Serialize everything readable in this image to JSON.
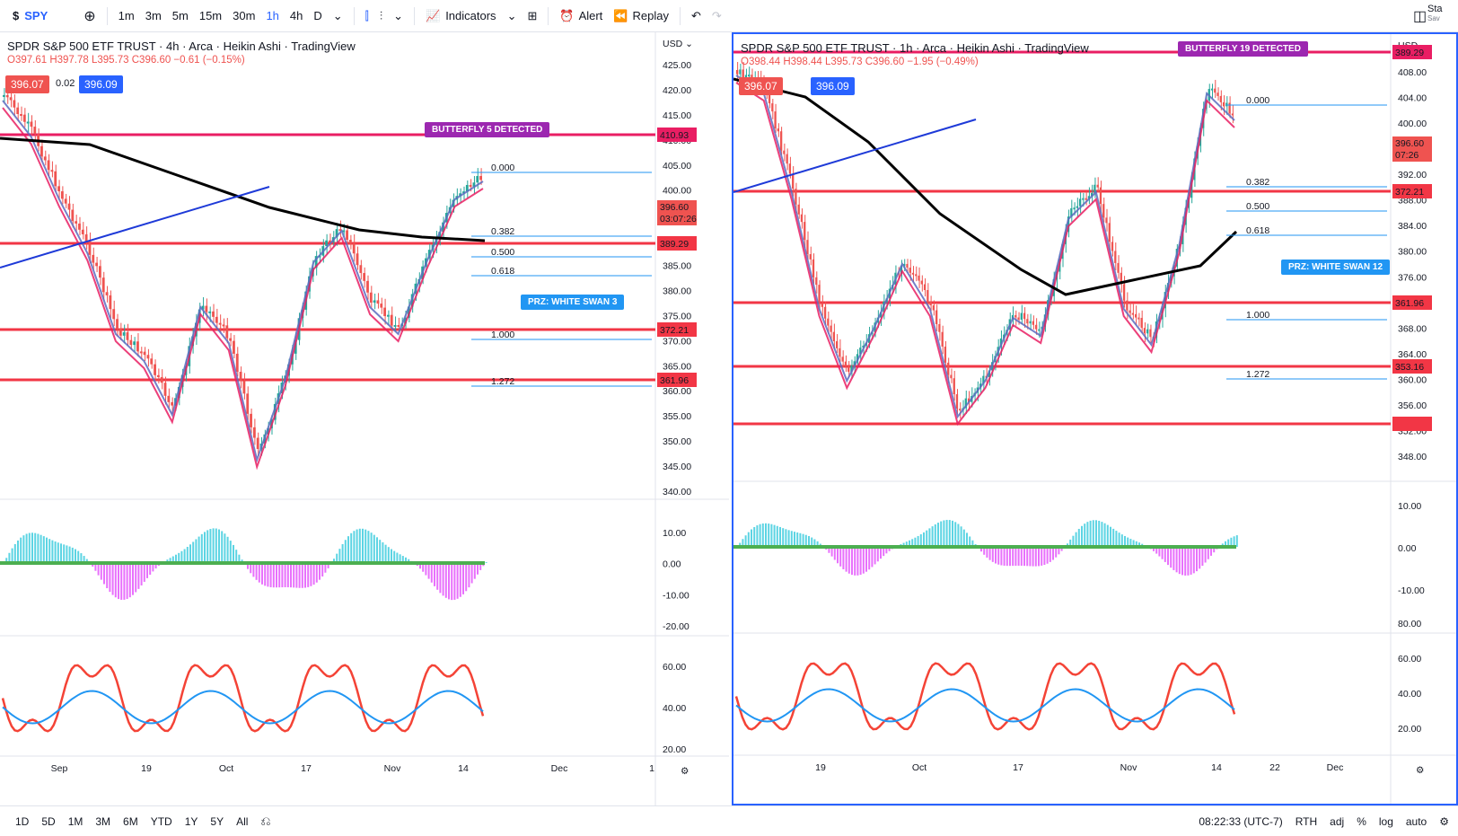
{
  "toolbar": {
    "symbol": "SPY",
    "intervals": [
      "1m",
      "3m",
      "5m",
      "15m",
      "30m",
      "1h",
      "4h",
      "D"
    ],
    "active_interval": "1h",
    "indicators_label": "Indicators",
    "alert_label": "Alert",
    "replay_label": "Replay",
    "right_fragment": "Sta",
    "right_fragment_sub": "Sav"
  },
  "left_pane": {
    "title": "SPDR S&P 500 ETF TRUST · 4h · Arca · Heikin Ashi · TradingView",
    "ohlc": "O397.61 H397.78 L395.73 C396.60 −0.61 (−0.15%)",
    "sell_price": "396.07",
    "spread": "0.02",
    "buy_price": "396.09",
    "currency": "USD",
    "price_ticks": [
      "425.00",
      "420.00",
      "415.00",
      "410.00",
      "405.00",
      "400.00",
      "395.00",
      "390.00",
      "385.00",
      "380.00",
      "375.00",
      "370.00",
      "365.00",
      "360.00",
      "355.00",
      "350.00",
      "345.00",
      "340.00"
    ],
    "osc_ticks": [
      "10.00",
      "0.00",
      "-10.00",
      "-20.00"
    ],
    "rsi_ticks": [
      "60.00",
      "40.00",
      "20.00"
    ],
    "time_ticks": [
      "Sep",
      "19",
      "Oct",
      "17",
      "Nov",
      "14",
      "Dec",
      "1"
    ],
    "level_labels": [
      "410.93",
      "389.29",
      "372.21",
      "361.96"
    ],
    "last_price": "396.60",
    "countdown": "03:07:26",
    "last_price2": "396.09",
    "butterfly": "BUTTERFLY 5 DETECTED",
    "prz": "PRZ: WHITE SWAN 3",
    "fibs": [
      "0.000",
      "0.382",
      "0.500",
      "0.618",
      "1.000",
      "1.272"
    ]
  },
  "right_pane": {
    "title": "SPDR S&P 500 ETF TRUST · 1h · Arca · Heikin Ashi · TradingView",
    "ohlc": "O398.44 H398.44 L395.73 C396.60 −1.95 (−0.49%)",
    "sell_price": "396.07",
    "buy_price": "396.09",
    "currency": "USD",
    "price_ticks": [
      "408.00",
      "404.00",
      "400.00",
      "396.00",
      "392.00",
      "388.00",
      "384.00",
      "380.00",
      "376.00",
      "372.00",
      "368.00",
      "364.00",
      "360.00",
      "356.00",
      "352.00",
      "348.00"
    ],
    "osc_ticks": [
      "10.00",
      "0.00",
      "-10.00"
    ],
    "rsi_ticks": [
      "80.00",
      "60.00",
      "40.00",
      "20.00"
    ],
    "time_ticks": [
      "19",
      "Oct",
      "17",
      "Nov",
      "14",
      "22",
      "Dec"
    ],
    "level_labels": [
      "389.29",
      "372.21",
      "361.96",
      "353.16"
    ],
    "last_price": "396.60",
    "countdown": "07:26",
    "last_price2": "396.09",
    "butterfly": "BUTTERFLY 19 DETECTED",
    "prz": "PRZ: WHITE SWAN 12",
    "fibs": [
      "0.000",
      "0.382",
      "0.500",
      "0.618",
      "1.000",
      "1.272"
    ]
  },
  "bottombar": {
    "ranges": [
      "1D",
      "5D",
      "1M",
      "3M",
      "6M",
      "YTD",
      "1Y",
      "5Y",
      "All"
    ],
    "clock": "08:22:33 (UTC-7)",
    "session": "RTH",
    "adj": "adj",
    "percent": "%",
    "log": "log",
    "auto": "auto"
  },
  "colors": {
    "accent": "#2962ff",
    "level_red": "#f23645",
    "pink_line": "#e91e63",
    "ma_black": "#000000",
    "trend_blue": "#1e3ad8",
    "fib_blue": "#2196f3",
    "butterfly_purple": "#9c27b0",
    "osc_pos": "#26c6da",
    "osc_neg": "#e040fb",
    "rsi_red": "#f44336",
    "rsi_blue": "#2196f3"
  }
}
